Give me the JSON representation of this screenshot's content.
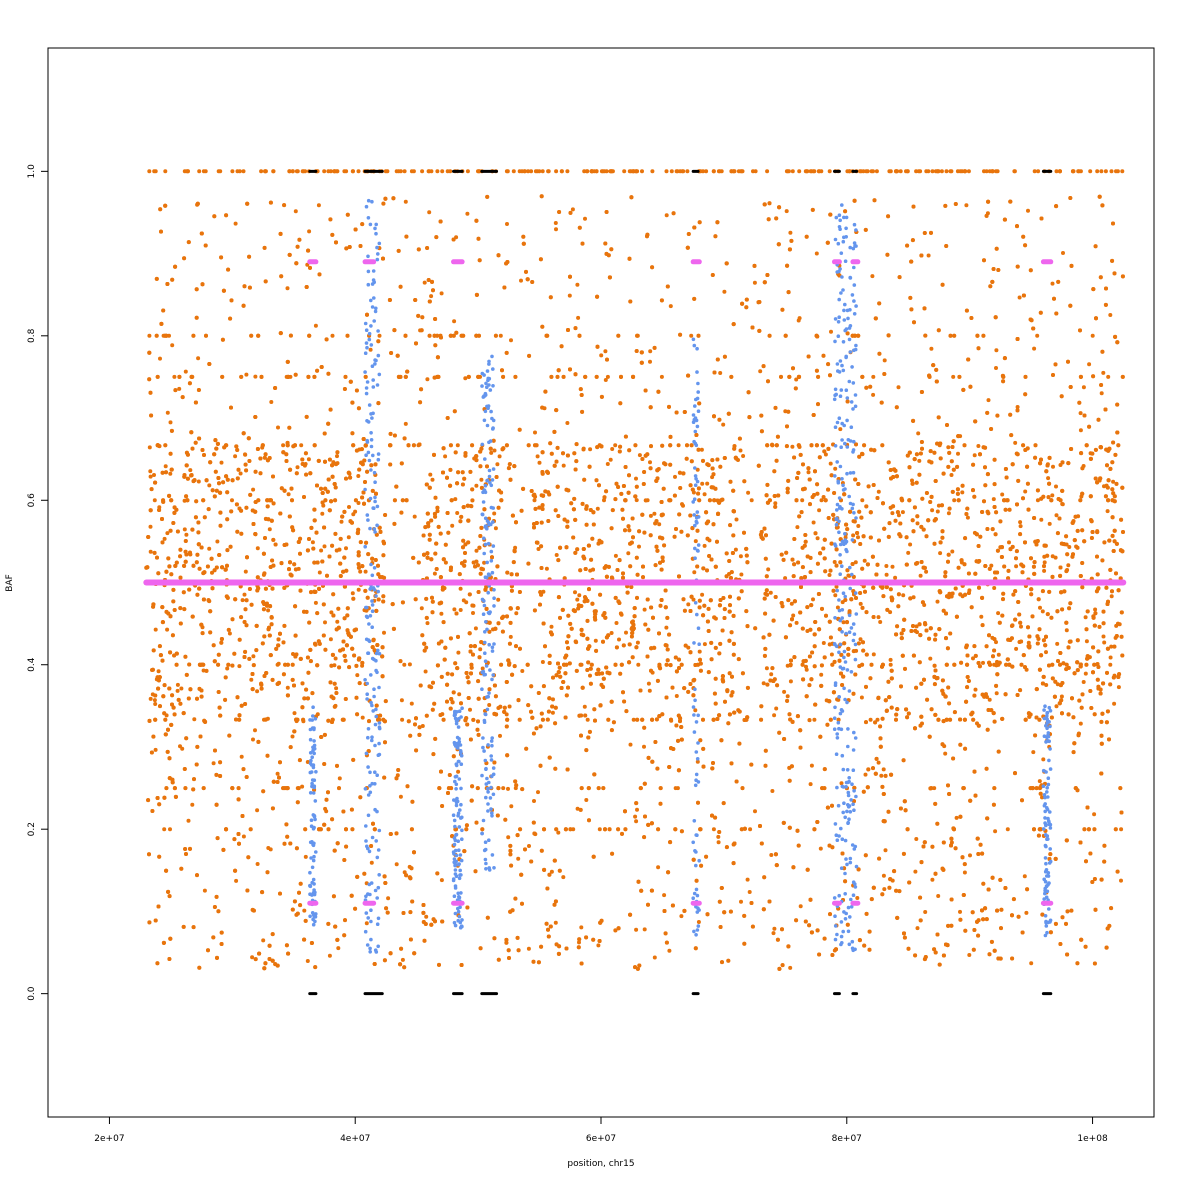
{
  "chart_data": {
    "type": "scatter",
    "title": "",
    "xlabel": "position, chr15",
    "ylabel": "BAF",
    "xlim": [
      15000000,
      105000000
    ],
    "ylim": [
      -0.15,
      1.15
    ],
    "x_ticks": [
      {
        "value": 20000000,
        "label": "2e+07"
      },
      {
        "value": 40000000,
        "label": "4e+07"
      },
      {
        "value": 60000000,
        "label": "6e+07"
      },
      {
        "value": 80000000,
        "label": "8e+07"
      },
      {
        "value": 100000000,
        "label": "1e+08"
      }
    ],
    "y_ticks": [
      {
        "value": 0.0,
        "label": "0.0"
      },
      {
        "value": 0.2,
        "label": "0.2"
      },
      {
        "value": 0.4,
        "label": "0.4"
      },
      {
        "value": 0.6,
        "label": "0.6"
      },
      {
        "value": 0.8,
        "label": "0.8"
      },
      {
        "value": 1.0,
        "label": "1.0"
      }
    ],
    "grid": false,
    "legend": "none",
    "colors": {
      "orange": "#e8740c",
      "blue": "#6495ed",
      "magenta": "#ee66ee",
      "black": "#000000"
    },
    "series": [
      {
        "color": "orange",
        "x_range": [
          23000000,
          102500000
        ],
        "het_band": [
          0.33,
          0.67
        ],
        "levels": [
          0.2,
          0.25,
          0.333,
          0.4,
          0.5,
          0.6,
          0.667,
          0.75,
          0.8
        ],
        "homozygous_values": [
          1.0
        ],
        "sparse_gaps": [
          [
            42500000,
            45500000
          ],
          [
            53500000,
            54500000
          ],
          [
            72000000,
            73000000
          ]
        ]
      },
      {
        "color": "blue",
        "regions": [
          {
            "x": [
              40800000,
              42000000
            ],
            "band": [
              0.05,
              0.97
            ]
          },
          {
            "x": [
              50300000,
              51300000
            ],
            "band": [
              0.15,
              0.78
            ]
          },
          {
            "x": [
              48000000,
              48700000
            ],
            "band": [
              0.08,
              0.35
            ]
          },
          {
            "x": [
              79000000,
              80800000
            ],
            "band": [
              0.05,
              0.97
            ]
          },
          {
            "x": [
              67500000,
              68000000
            ],
            "band": [
              0.06,
              0.82
            ]
          },
          {
            "x": [
              36300000,
              36800000
            ],
            "band": [
              0.08,
              0.35
            ]
          },
          {
            "x": [
              96000000,
              96600000
            ],
            "band": [
              0.07,
              0.35
            ]
          }
        ]
      },
      {
        "color": "magenta",
        "baseline": {
          "y": 0.5,
          "x": [
            23000000,
            102500000
          ]
        },
        "segments": [
          {
            "x": [
              36300000,
              36800000
            ],
            "y": [
              0.89,
              0.11
            ]
          },
          {
            "x": [
              40800000,
              41500000
            ],
            "y": [
              0.89,
              0.11
            ]
          },
          {
            "x": [
              48000000,
              48700000
            ],
            "y": [
              0.89,
              0.11
            ]
          },
          {
            "x": [
              67500000,
              68000000
            ],
            "y": [
              0.89,
              0.11
            ]
          },
          {
            "x": [
              79000000,
              79400000
            ],
            "y": [
              0.89,
              0.11
            ]
          },
          {
            "x": [
              80500000,
              80900000
            ],
            "y": [
              0.89,
              0.11
            ]
          },
          {
            "x": [
              96000000,
              96600000
            ],
            "y": [
              0.89,
              0.11
            ]
          }
        ]
      },
      {
        "color": "black",
        "y_values": [
          0.0,
          1.0
        ],
        "segments": [
          [
            36300000,
            36800000
          ],
          [
            40800000,
            42200000
          ],
          [
            48000000,
            48700000
          ],
          [
            50300000,
            51500000
          ],
          [
            67500000,
            67900000
          ],
          [
            79000000,
            79400000
          ],
          [
            80500000,
            80800000
          ],
          [
            96000000,
            96600000
          ]
        ]
      }
    ]
  }
}
